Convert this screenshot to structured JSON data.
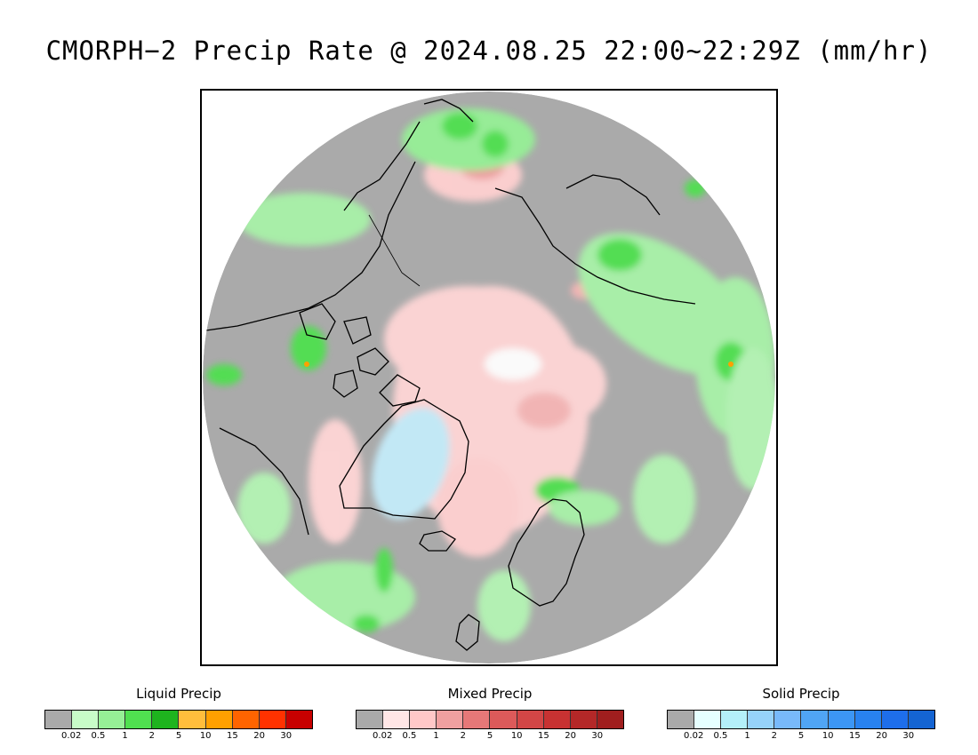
{
  "title": "CMORPH−2 Precip Rate @ 2024.08.25 22:00~22:29Z (mm/hr)",
  "map": {
    "projection": "north-polar-stereographic",
    "background_color": "#aaaaaa",
    "coastline_color": "#000000"
  },
  "legends": [
    {
      "title": "Liquid Precip",
      "colors": [
        "#aaaaaa",
        "#c8fcc8",
        "#96f096",
        "#50e050",
        "#1eb41e",
        "#ffbe3c",
        "#ffa000",
        "#ff6400",
        "#ff3200",
        "#c80000"
      ],
      "ticks": [
        "0.02",
        "0.5",
        "1",
        "2",
        "5",
        "10",
        "15",
        "20",
        "30"
      ]
    },
    {
      "title": "Mixed Precip",
      "colors": [
        "#aaaaaa",
        "#ffe6e6",
        "#ffc8c8",
        "#f0a0a0",
        "#e67878",
        "#dc5a5a",
        "#d24646",
        "#c83232",
        "#b42828",
        "#a01e1e"
      ],
      "ticks": [
        "0.02",
        "0.5",
        "1",
        "2",
        "5",
        "10",
        "15",
        "20",
        "30"
      ]
    },
    {
      "title": "Solid Precip",
      "colors": [
        "#aaaaaa",
        "#e6ffff",
        "#b4f0fa",
        "#96d2fa",
        "#78b9fa",
        "#50a5f5",
        "#3c96f5",
        "#2882f0",
        "#1e6eeb",
        "#1464d2"
      ],
      "ticks": [
        "0.02",
        "0.5",
        "1",
        "2",
        "5",
        "10",
        "15",
        "20",
        "30"
      ]
    }
  ]
}
